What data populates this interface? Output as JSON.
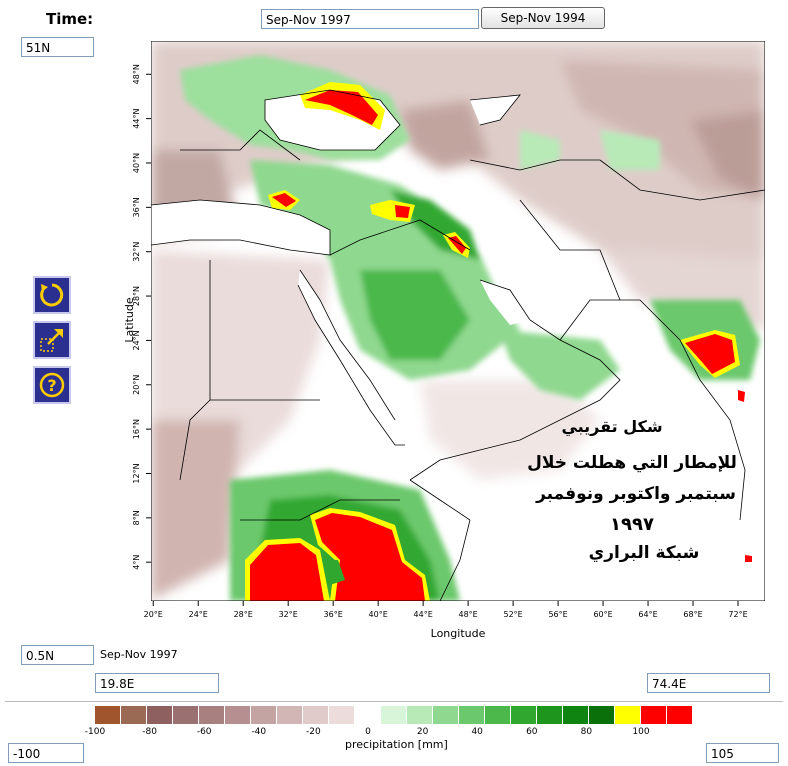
{
  "time_label": "Time:",
  "time_field_value": "Sep-Nov 1997",
  "compare_button": "Sep-Nov 1994",
  "lat_max_field": "51N",
  "lat_min_field": "0.5N",
  "lon_min_field": "19.8E",
  "lon_max_field": "74.4E",
  "period_text": "Sep-Nov 1997",
  "colorbar_min_field": "-100",
  "colorbar_max_field": "105",
  "map": {
    "lon_range": [
      19.8,
      74.4
    ],
    "lat_range": [
      0.5,
      51
    ],
    "x_ticks": [
      "20°E",
      "24°E",
      "28°E",
      "32°E",
      "36°E",
      "40°E",
      "44°E",
      "48°E",
      "52°E",
      "56°E",
      "60°E",
      "64°E",
      "68°E",
      "72°E"
    ],
    "y_ticks": [
      "4°N",
      "8°N",
      "12°N",
      "16°N",
      "20°N",
      "24°N",
      "28°N",
      "32°N",
      "36°N",
      "40°N",
      "44°N",
      "48°N"
    ],
    "xlabel": "Longitude",
    "ylabel": "Latitude",
    "annotation_lines": [
      "شكل تقريبي",
      "للإمطار التي هطلت خلال",
      "سبتمبر واكتوبر ونوفمبر",
      "١٩٩٧",
      "شبكة البراري"
    ]
  },
  "colorbar": {
    "label": "precipitation [mm]",
    "ticks": [
      "-100",
      "-80",
      "-60",
      "-40",
      "-20",
      "0",
      "20",
      "40",
      "60",
      "80",
      "100"
    ],
    "colors": [
      "#a0552d",
      "#9a6a55",
      "#8e6060",
      "#9a7070",
      "#a88080",
      "#b69090",
      "#c4a3a3",
      "#d2b6b6",
      "#e0caca",
      "#ecdcdc",
      "#ffffff",
      "#d9f5d9",
      "#b8eab8",
      "#8fd88f",
      "#6cc86c",
      "#4cb84c",
      "#30a830",
      "#1e961e",
      "#108410",
      "#0a700a",
      "#ffff00",
      "#ff0000",
      "#ff0000"
    ]
  },
  "tools": {
    "refresh": "refresh-icon",
    "zoom": "zoom-icon",
    "help": "help-icon"
  }
}
